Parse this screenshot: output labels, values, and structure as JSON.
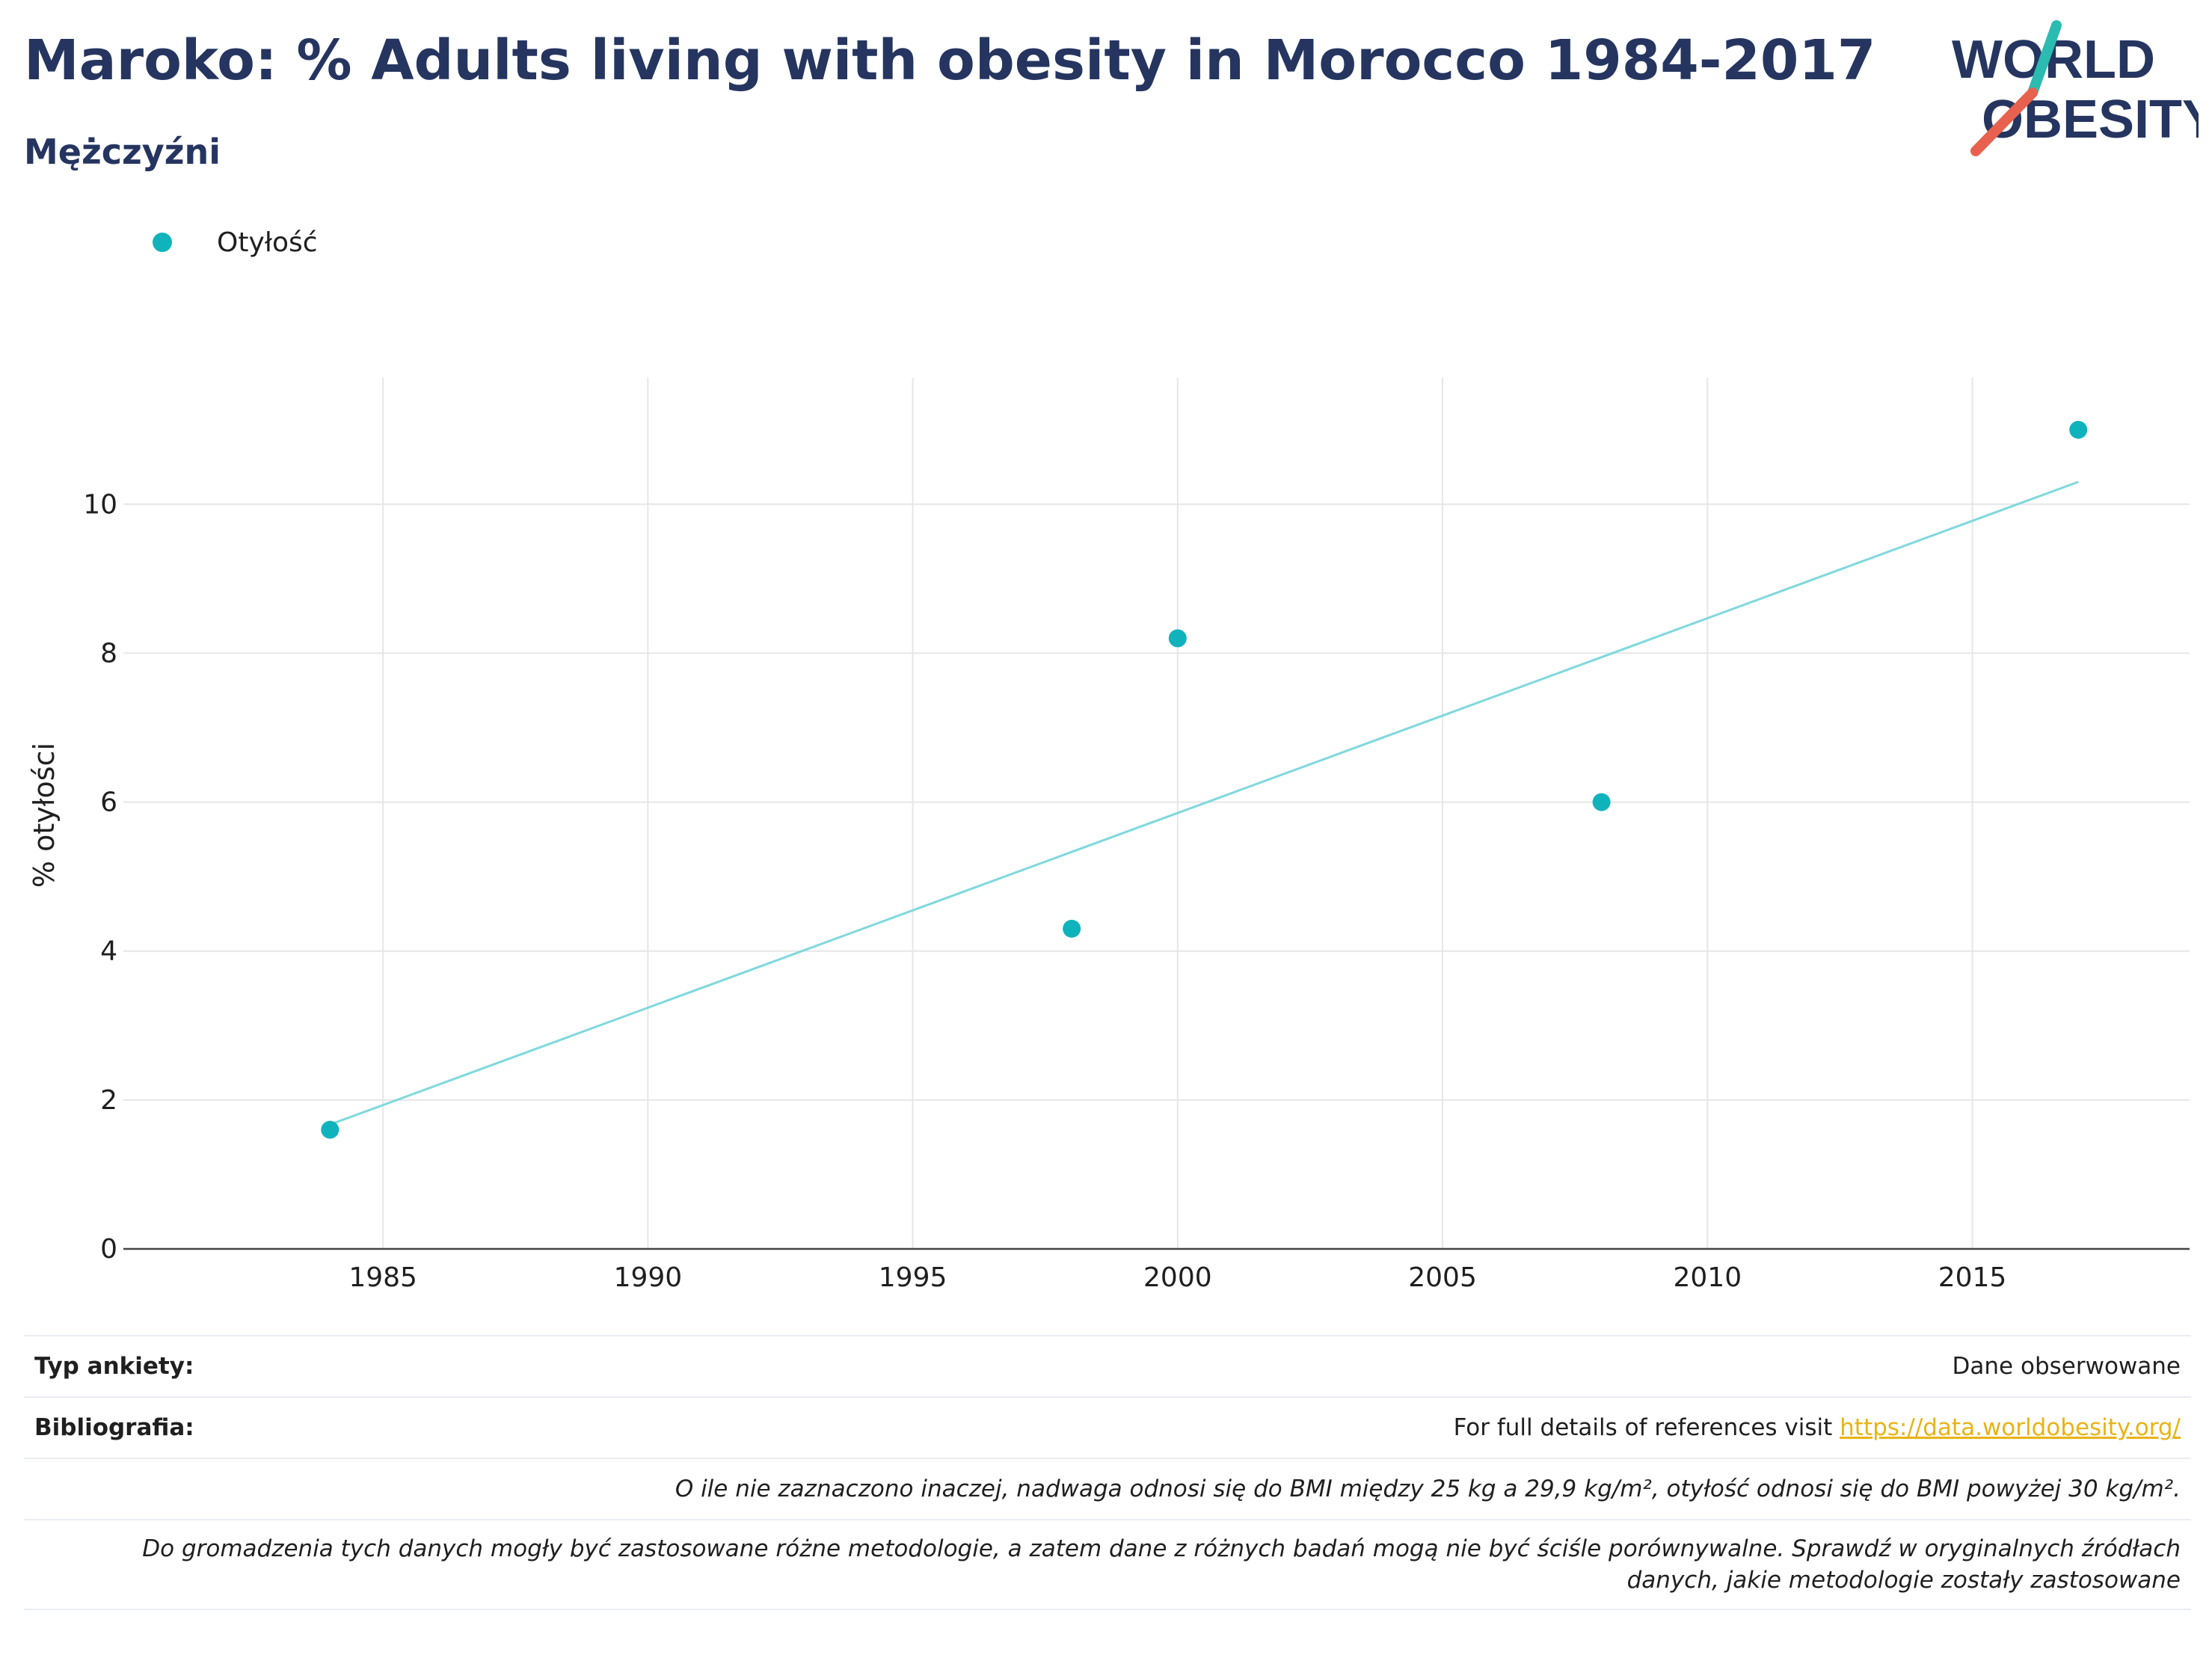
{
  "title": "Maroko: % Adults living with obesity in Morocco 1984-2017",
  "subtitle": "Mężczyźni",
  "logo": {
    "line1": "WORLD",
    "line2": "OBESITY",
    "accent_teal": "#2bbbb0",
    "accent_red": "#e8614f",
    "text_color": "#253560"
  },
  "legend": {
    "items": [
      {
        "label": "Otyłość",
        "color": "#0fb3bc"
      }
    ]
  },
  "chart_data": {
    "type": "scatter",
    "ylabel": "% otyłości",
    "xlabel": "",
    "xlim": [
      1980.1,
      2019.1
    ],
    "ylim": [
      0,
      11.7
    ],
    "x_ticks": [
      "1985",
      "1990",
      "1995",
      "2000",
      "2005",
      "2010",
      "2015"
    ],
    "y_ticks": [
      "0",
      "2",
      "4",
      "6",
      "8",
      "10"
    ],
    "grid": true,
    "legend_position": "top-left",
    "series": [
      {
        "name": "Otyłość",
        "color": "#0fb3bc",
        "points": [
          {
            "x": 1984,
            "y": 1.6
          },
          {
            "x": 1998,
            "y": 4.3
          },
          {
            "x": 2000,
            "y": 8.2
          },
          {
            "x": 2008,
            "y": 6.0
          },
          {
            "x": 2017,
            "y": 11.0
          }
        ]
      }
    ],
    "trendline": {
      "color": "#7fd8dc",
      "start": {
        "x": 1984,
        "y": 1.67
      },
      "end": {
        "x": 2017,
        "y": 10.3
      }
    }
  },
  "footer": {
    "survey_label": "Typ ankiety:",
    "survey_value": "Dane obserwowane",
    "bib_label": "Bibliografia:",
    "bib_text": "For full details of references visit ",
    "bib_link": "https://data.worldobesity.org/",
    "note1": "O ile nie zaznaczono inaczej, nadwaga odnosi się do BMI między 25 kg a 29,9 kg/m², otyłość odnosi się do BMI powyżej 30 kg/m².",
    "note2": "Do gromadzenia tych danych mogły być zastosowane różne metodologie, a zatem dane z różnych badań mogą nie być ściśle porównywalne. Sprawdź w oryginalnych źródłach danych, jakie metodologie zostały zastosowane"
  }
}
